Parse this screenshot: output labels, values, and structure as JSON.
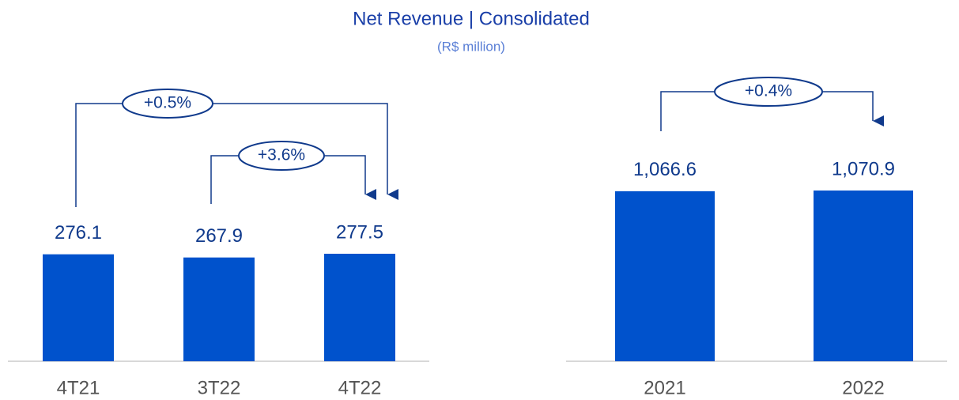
{
  "title": "Net Revenue | Consolidated",
  "subtitle": "(R$ million)",
  "chart_data": [
    {
      "type": "bar",
      "categories": [
        "4T21",
        "3T22",
        "4T22"
      ],
      "values": [
        276.1,
        267.9,
        277.5
      ],
      "color": "#0052cc",
      "annotations": [
        "+0.5%",
        "+3.6%"
      ]
    },
    {
      "type": "bar",
      "categories": [
        "2021",
        "2022"
      ],
      "values": [
        1066.6,
        1070.9
      ],
      "value_labels": [
        "1,066.6",
        "1,070.9"
      ],
      "color": "#0052cc",
      "annotations": [
        "+0.4%"
      ]
    }
  ]
}
